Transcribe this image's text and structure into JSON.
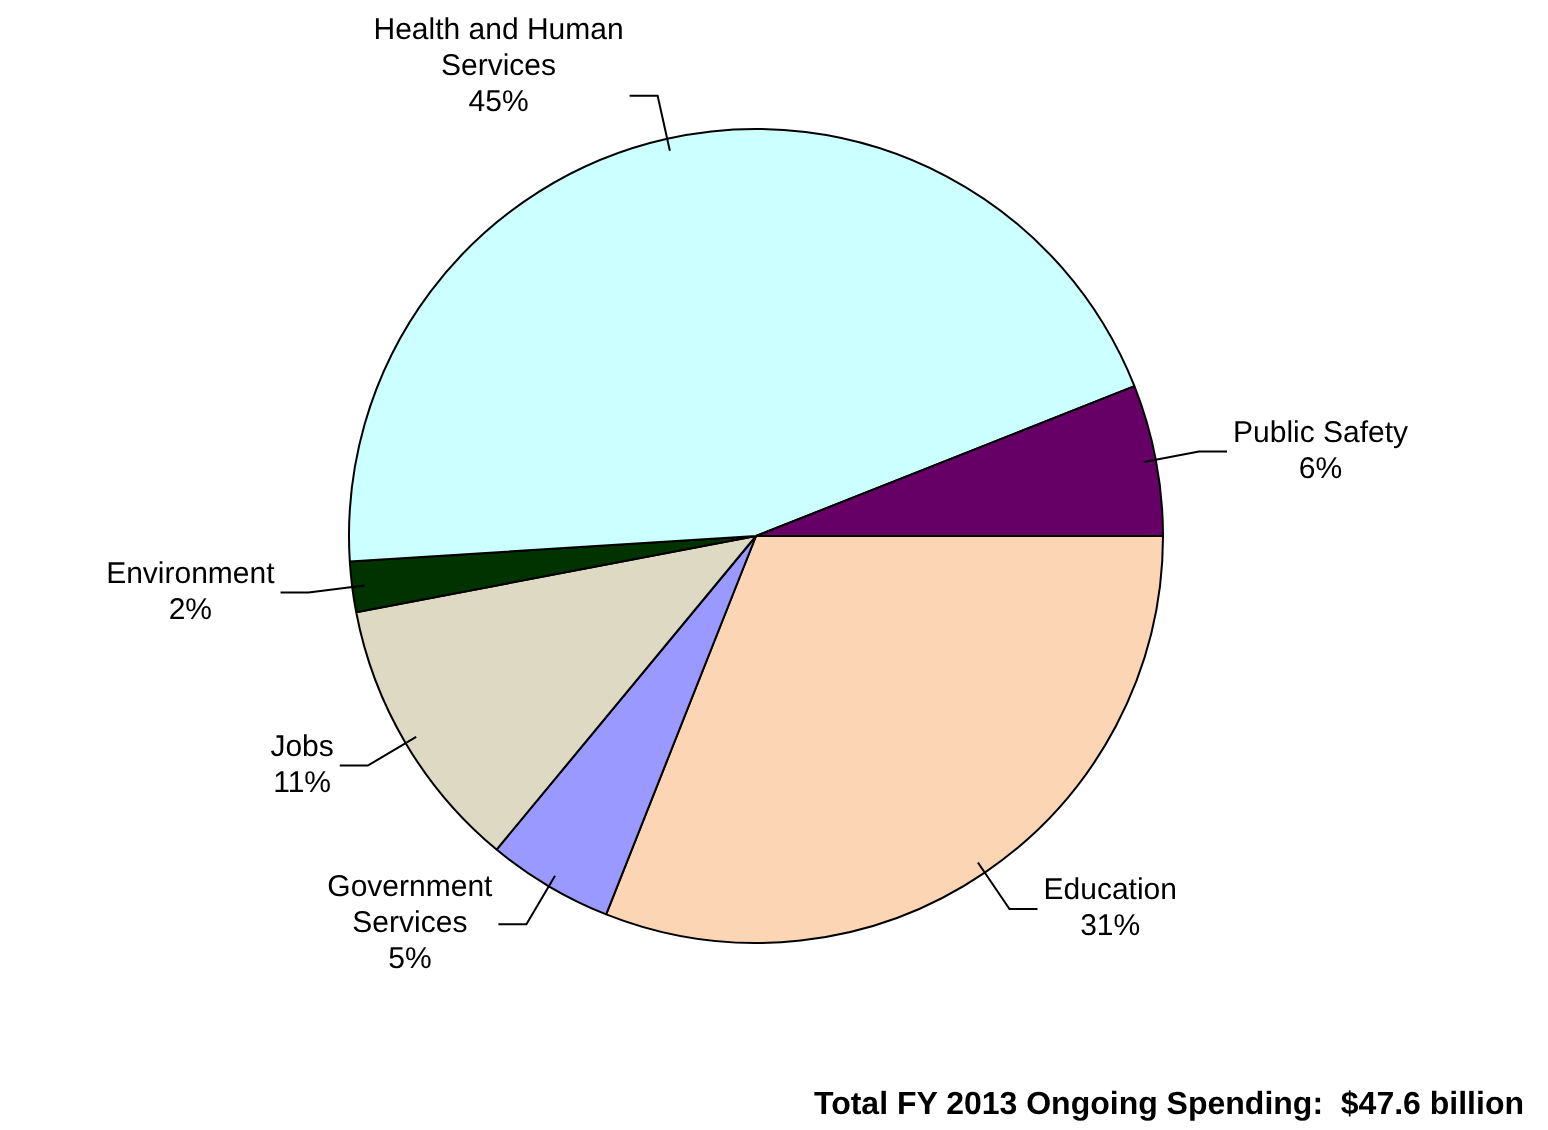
{
  "chart_data": {
    "type": "pie",
    "categories": [
      "Education",
      "Government Services",
      "Jobs",
      "Environment",
      "Health and Human Services",
      "Public Safety"
    ],
    "values": [
      31,
      5,
      11,
      2,
      45,
      6
    ],
    "value_labels": [
      "31%",
      "5%",
      "11%",
      "2%",
      "45%",
      "6%"
    ],
    "colors": [
      "#fcd5b4",
      "#9999ff",
      "#ddd9c3",
      "#003300",
      "#ccffff",
      "#660066"
    ],
    "legend": false,
    "annotations": [
      "Total FY 2013 Ongoing Spending:  $47.6 billion"
    ]
  }
}
